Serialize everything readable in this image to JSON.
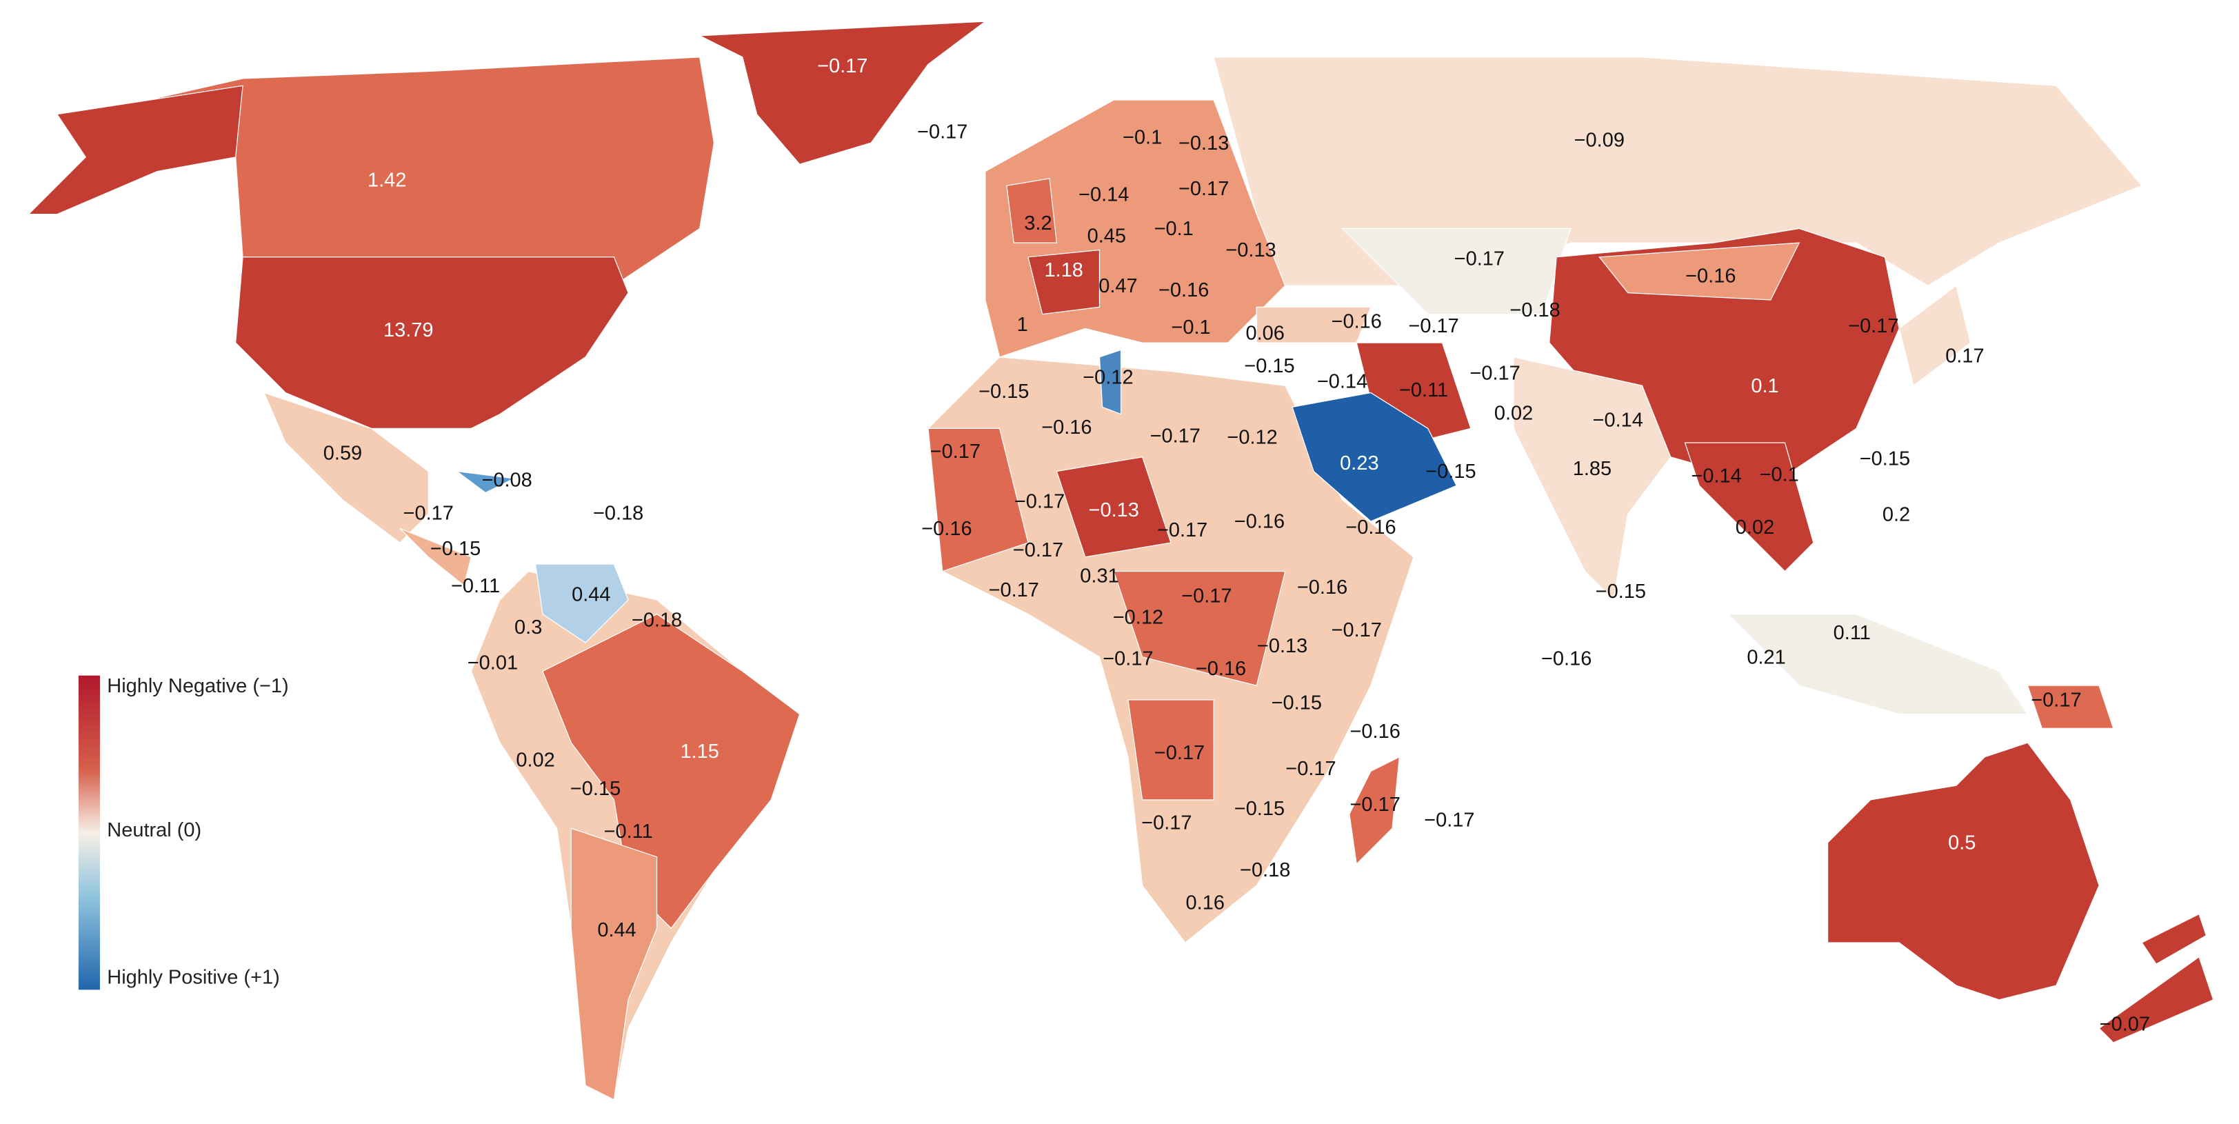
{
  "map": {
    "labels": [
      "−0.17",
      "−0.17",
      "−0.1",
      "−0.13",
      "−0.09",
      "1.42",
      "−0.14",
      "−0.17",
      "3.2",
      "0.45",
      "−0.1",
      "−0.13",
      "−0.17",
      "−0.16",
      "1.18",
      "0.47",
      "−0.16",
      "−0.18",
      "13.79",
      "1",
      "−0.1",
      "0.06",
      "−0.16",
      "−0.17",
      "−0.17",
      "0.17",
      "−0.12",
      "−0.15",
      "−0.14",
      "−0.11",
      "−0.17",
      "−0.15",
      "0.1",
      "−0.16",
      "−0.17",
      "−0.12",
      "0.02",
      "−0.14",
      "0.59",
      "−0.17",
      "0.23",
      "−0.15",
      "1.85",
      "−0.14",
      "−0.1",
      "−0.15",
      "−0.08",
      "−0.17",
      "−0.13",
      "−0.17",
      "−0.18",
      "0.2",
      "−0.16",
      "−0.17",
      "−0.16",
      "−0.16",
      "0.02",
      "−0.15",
      "−0.17",
      "−0.11",
      "0.44",
      "0.31",
      "−0.17",
      "−0.17",
      "−0.16",
      "−0.15",
      "0.3",
      "−0.18",
      "−0.12",
      "−0.17",
      "0.11",
      "−0.13",
      "−0.01",
      "−0.17",
      "−0.16",
      "−0.16",
      "0.21",
      "−0.15",
      "−0.17",
      "−0.16",
      "1.15",
      "−0.17",
      "0.02",
      "−0.17",
      "−0.15",
      "−0.17",
      "−0.15",
      "−0.17",
      "−0.17",
      "−0.11",
      "0.5",
      "−0.18",
      "0.16",
      "0.44",
      "−0.07"
    ],
    "legend": {
      "negative": "Highly Negative (−1)",
      "neutral": "Neutral (0)",
      "positive": "Highly Positive (+1)"
    }
  }
}
